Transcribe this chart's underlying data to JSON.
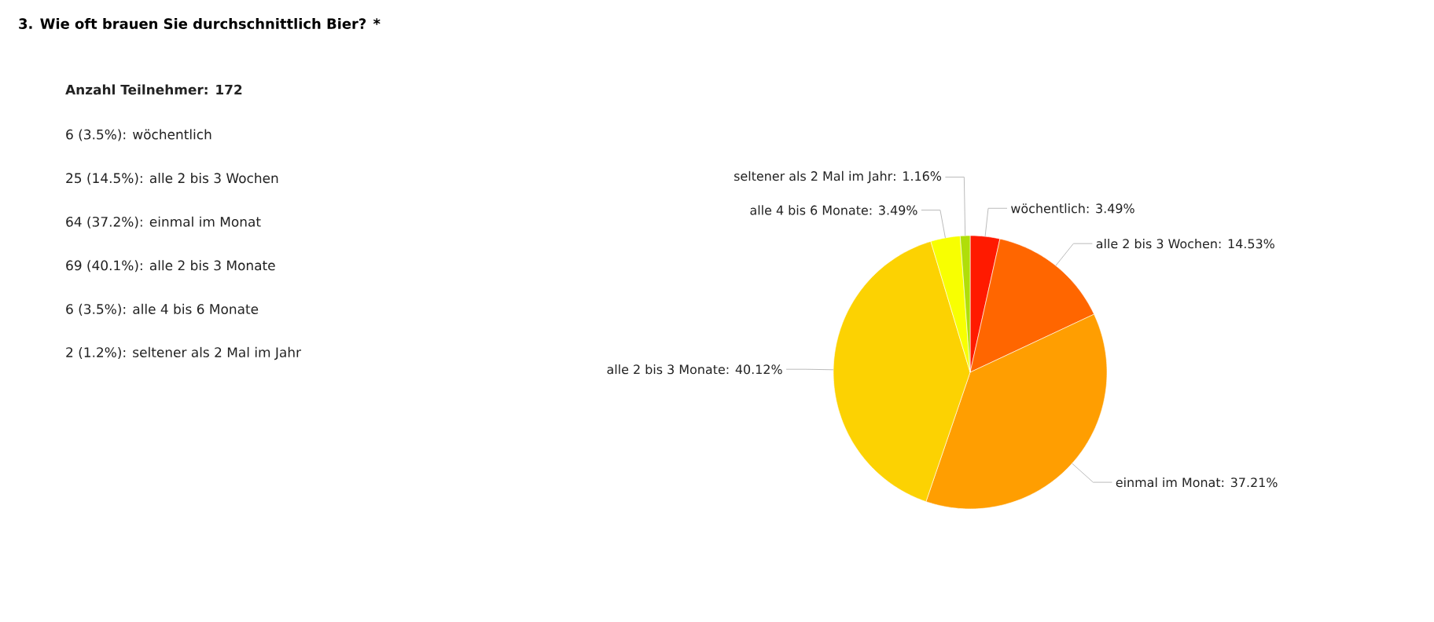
{
  "chart_data": {
    "type": "pie",
    "title": "3.  Wie oft brauen Sie durchschnittlich Bier? *",
    "categories": [
      "wöchentlich",
      "alle 2 bis 3 Wochen",
      "einmal im Monat",
      "alle 2 bis 3 Monate",
      "alle 4 bis 6 Monate",
      "seltener als 2 Mal im Jahr"
    ],
    "values": [
      3.49,
      14.53,
      37.21,
      40.12,
      3.49,
      1.16
    ],
    "value_labels": [
      ": 3.49%",
      ": 14.53%",
      ": 37.21%",
      ": 40.12%",
      ": 3.49%",
      ": 1.16%"
    ],
    "colors": [
      "#ff1a00",
      "#ff6600",
      "#ff9e01",
      "#fcd202",
      "#f8ff01",
      "#b0de09"
    ],
    "annotations": [
      "Anzahl Teilnehmer: 172",
      "6 (3.5%): wöchentlich",
      "25 (14.5%): alle 2 bis 3 Wochen",
      "64 (37.2%): einmal im Monat",
      "69 (40.1%): alle 2 bis 3 Monate",
      "6 (3.5%): alle 4 bis 6 Monate",
      "2 (1.2%): seltener als 2 Mal im Jahr"
    ]
  }
}
